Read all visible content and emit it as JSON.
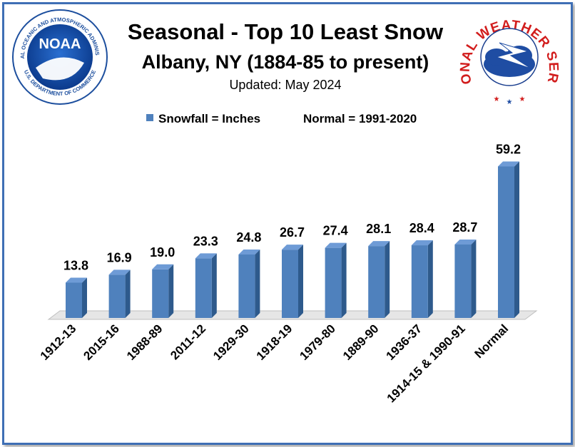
{
  "chart_data": {
    "type": "bar",
    "title": "Seasonal - Top 10 Least Snow",
    "subtitle": "Albany, NY (1884-85 to present)",
    "updated": "Updated: May 2024",
    "legend": {
      "series_label": "Snowfall = Inches",
      "note": "Normal = 1991-2020",
      "position": "top-center"
    },
    "categories": [
      "1912-13",
      "2015-16",
      "1988-89",
      "2011-12",
      "1929-30",
      "1918-19",
      "1979-80",
      "1889-90",
      "1936-37",
      "1914-15 & 1990-91",
      "Normal"
    ],
    "values": [
      13.8,
      16.9,
      19.0,
      23.3,
      24.8,
      26.7,
      27.4,
      28.1,
      28.4,
      28.7,
      59.2
    ],
    "value_labels": [
      "13.8",
      "16.9",
      "19.0",
      "23.3",
      "24.8",
      "26.7",
      "27.4",
      "28.1",
      "28.4",
      "28.7",
      "59.2"
    ],
    "ylim": [
      0,
      62
    ],
    "grid": false,
    "bar_style": "3d",
    "colors": {
      "bar_front": "#4f81bd",
      "bar_side": "#2e5a8c",
      "bar_top": "#6e9bd6",
      "floor": "#e6e6e6",
      "frame": "#3f6fb5"
    }
  },
  "logos": {
    "noaa": {
      "center_text": "NOAA",
      "ring_text_top": "NATIONAL OCEANIC AND ATMOSPHERIC ADMINISTRATION",
      "ring_text_bottom": "U.S. DEPARTMENT OF COMMERCE"
    },
    "nws": {
      "ring_text": "NATIONAL WEATHER SERVICE"
    }
  }
}
